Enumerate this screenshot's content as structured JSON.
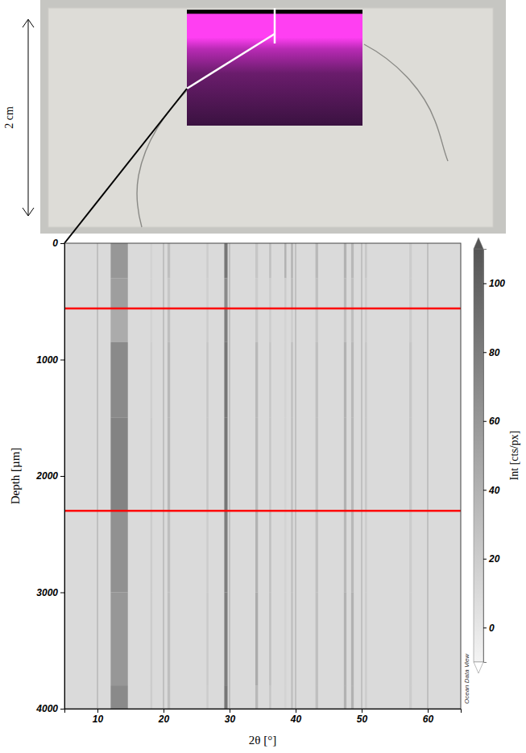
{
  "photo": {
    "scale_label": "2 cm"
  },
  "chart_data": {
    "type": "heatmap",
    "x_label": "2θ [°]",
    "y_label": "Depth [µm]",
    "xlim": [
      5,
      65
    ],
    "xticks": [
      10,
      20,
      30,
      40,
      50,
      60
    ],
    "ylim": [
      0,
      4000
    ],
    "yticks": [
      0,
      1000,
      2000,
      3000,
      4000
    ],
    "grid": true,
    "background": 10,
    "depth_edges": [
      0,
      300,
      560,
      850,
      1500,
      2300,
      3000,
      3800,
      4000
    ],
    "peaks": [
      {
        "x0": 12.0,
        "x1": 14.6,
        "values": [
          60,
          55,
          45,
          70,
          75,
          65,
          60,
          70
        ]
      },
      {
        "x0": 18.0,
        "x1": 18.3,
        "values": [
          15,
          15,
          15,
          18,
          20,
          20,
          20,
          20
        ]
      },
      {
        "x0": 20.6,
        "x1": 21.0,
        "values": [
          30,
          25,
          30,
          35,
          35,
          30,
          30,
          30
        ]
      },
      {
        "x0": 26.5,
        "x1": 26.8,
        "values": [
          20,
          18,
          20,
          25,
          25,
          20,
          22,
          20
        ]
      },
      {
        "x0": 29.2,
        "x1": 29.7,
        "values": [
          85,
          70,
          80,
          85,
          85,
          80,
          80,
          85
        ]
      },
      {
        "x0": 33.9,
        "x1": 34.3,
        "values": [
          25,
          20,
          25,
          35,
          35,
          40,
          45,
          35
        ]
      },
      {
        "x0": 36.0,
        "x1": 36.3,
        "values": [
          30,
          20,
          20,
          25,
          25,
          30,
          30,
          25
        ]
      },
      {
        "x0": 38.3,
        "x1": 38.6,
        "values": [
          40,
          20,
          15,
          15,
          15,
          15,
          15,
          15
        ]
      },
      {
        "x0": 39.3,
        "x1": 39.6,
        "values": [
          40,
          35,
          20,
          30,
          30,
          30,
          30,
          30
        ]
      },
      {
        "x0": 43.0,
        "x1": 43.4,
        "values": [
          35,
          30,
          25,
          30,
          30,
          30,
          30,
          30
        ]
      },
      {
        "x0": 47.3,
        "x1": 47.7,
        "values": [
          40,
          35,
          30,
          40,
          40,
          35,
          40,
          40
        ]
      },
      {
        "x0": 48.4,
        "x1": 48.8,
        "values": [
          35,
          30,
          30,
          35,
          35,
          35,
          40,
          40
        ]
      },
      {
        "x0": 50.5,
        "x1": 50.8,
        "values": [
          25,
          20,
          20,
          25,
          25,
          20,
          20,
          20
        ]
      },
      {
        "x0": 57.2,
        "x1": 57.6,
        "values": [
          20,
          20,
          20,
          25,
          25,
          20,
          20,
          20
        ]
      }
    ],
    "ref_lines": {
      "values": [
        560,
        2300
      ],
      "color": "#ff0000"
    },
    "colorbar": {
      "label": "Int [cts/px]",
      "range": [
        -10,
        110
      ],
      "ticks": [
        0,
        20,
        40,
        60,
        80,
        100
      ]
    },
    "annotations": [
      "Ocean Data View"
    ]
  }
}
